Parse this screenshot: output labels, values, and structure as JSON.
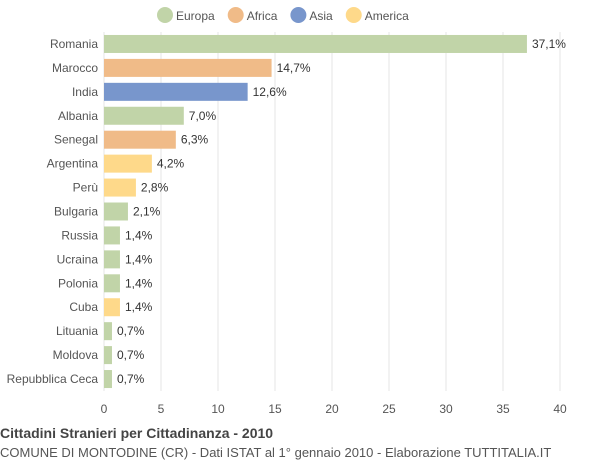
{
  "chart_data": {
    "type": "bar",
    "orientation": "horizontal",
    "categories": [
      "Romania",
      "Marocco",
      "India",
      "Albania",
      "Senegal",
      "Argentina",
      "Perù",
      "Bulgaria",
      "Russia",
      "Ucraina",
      "Polonia",
      "Cuba",
      "Lituania",
      "Moldova",
      "Repubblica Ceca"
    ],
    "values": [
      37.1,
      14.7,
      12.6,
      7.0,
      6.3,
      4.2,
      2.8,
      2.1,
      1.4,
      1.4,
      1.4,
      1.4,
      0.7,
      0.7,
      0.7
    ],
    "value_labels": [
      "37,1%",
      "14,7%",
      "12,6%",
      "7,0%",
      "6,3%",
      "4,2%",
      "2,8%",
      "2,1%",
      "1,4%",
      "1,4%",
      "1,4%",
      "1,4%",
      "0,7%",
      "0,7%",
      "0,7%"
    ],
    "groups": [
      "Europa",
      "Africa",
      "Asia",
      "Europa",
      "Africa",
      "America",
      "America",
      "Europa",
      "Europa",
      "Europa",
      "Europa",
      "America",
      "Europa",
      "Europa",
      "Europa"
    ],
    "legend": [
      {
        "name": "Europa",
        "color": "#c1d4a8"
      },
      {
        "name": "Africa",
        "color": "#f0bb88"
      },
      {
        "name": "Asia",
        "color": "#7896cc"
      },
      {
        "name": "America",
        "color": "#fed98a"
      }
    ],
    "legend_position": "top",
    "xlim": [
      0,
      40
    ],
    "xticks": [
      0,
      5,
      10,
      15,
      20,
      25,
      30,
      35,
      40
    ],
    "grid": true
  },
  "footer": {
    "title": "Cittadini Stranieri per Cittadinanza - 2010",
    "subtitle": "COMUNE DI MONTODINE (CR) - Dati ISTAT al 1° gennaio 2010 - Elaborazione TUTTITALIA.IT"
  }
}
